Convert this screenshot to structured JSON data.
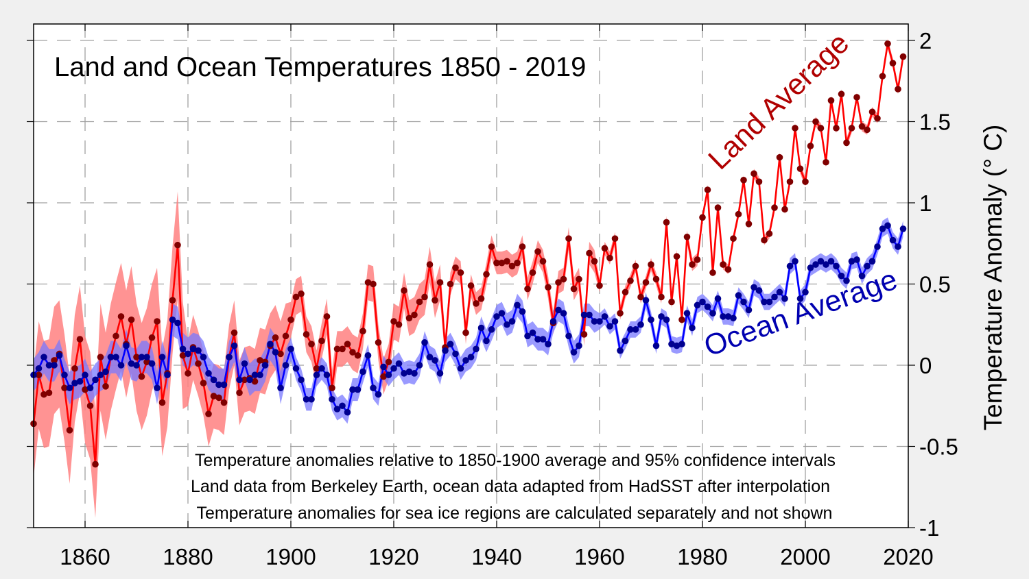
{
  "chart_data": {
    "type": "line",
    "title": "Land and Ocean Temperatures 1850 - 2019",
    "xlabel": "",
    "ylabel": "Temperature Anomaly (° C)",
    "xlim": [
      1848,
      2020
    ],
    "ylim": [
      -1,
      2.1
    ],
    "x_ticks": [
      "1860",
      "1880",
      "1900",
      "1920",
      "1940",
      "1960",
      "1980",
      "2000",
      "2020"
    ],
    "y_ticks": [
      "-1",
      "-0.5",
      "0",
      "0.5",
      "1",
      "1.5",
      "2"
    ],
    "y_axis_side": "right",
    "grid": true,
    "notes": [
      "Temperature anomalies relative to 1850-1900 average and 95% confidence intervals",
      "Land data from Berkeley Earth, ocean data adapted from HadSST after interpolation",
      "Temperature anomalies for sea ice regions are calculated separately and not shown"
    ],
    "x_start": 1850,
    "series": [
      {
        "name": "Land Average",
        "color": "#ff0000",
        "marker_color": "#800000",
        "band_color": "#ff8080",
        "values": [
          -0.36,
          -0.06,
          -0.18,
          -0.17,
          0.03,
          0.07,
          -0.14,
          -0.4,
          -0.02,
          0.16,
          -0.15,
          -0.25,
          -0.61,
          0.05,
          -0.13,
          0.05,
          0.18,
          0.3,
          0.13,
          0.28,
          0.05,
          -0.07,
          0.02,
          0.17,
          0.27,
          -0.23,
          -0.05,
          0.4,
          0.74,
          0.06,
          -0.05,
          0.11,
          0.01,
          -0.11,
          -0.3,
          -0.19,
          -0.2,
          -0.23,
          0.05,
          0.2,
          -0.17,
          -0.09,
          -0.08,
          -0.1,
          0.03,
          0.02,
          0.12,
          0.17,
          0.07,
          0.18,
          0.28,
          0.42,
          0.44,
          0.19,
          0.13,
          -0.02,
          0.15,
          0.3,
          -0.14,
          0.1,
          0.1,
          0.13,
          0.08,
          0.06,
          0.21,
          0.51,
          0.5,
          0.14,
          -0.07,
          0.02,
          0.27,
          0.25,
          0.46,
          0.29,
          0.31,
          0.39,
          0.42,
          0.62,
          0.4,
          0.51,
          0.11,
          0.5,
          0.6,
          0.57,
          0.2,
          0.49,
          0.38,
          0.41,
          0.56,
          0.73,
          0.63,
          0.63,
          0.64,
          0.61,
          0.63,
          0.73,
          0.47,
          0.57,
          0.7,
          0.64,
          0.48,
          0.26,
          0.51,
          0.53,
          0.78,
          0.47,
          0.53,
          0.19,
          0.69,
          0.64,
          0.49,
          0.72,
          0.66,
          0.78,
          0.32,
          0.45,
          0.52,
          0.61,
          0.42,
          0.51,
          0.62,
          0.53,
          0.42,
          0.88,
          0.39,
          0.67,
          0.28,
          0.79,
          0.62,
          0.65,
          0.91,
          1.08,
          0.57,
          0.97,
          0.62,
          0.59,
          0.78,
          0.93,
          1.14,
          0.87,
          1.18,
          1.13,
          0.77,
          0.81,
          0.97,
          1.28,
          0.96,
          1.13,
          1.46,
          1.21,
          1.13,
          1.35,
          1.5,
          1.46,
          1.25,
          1.63,
          1.46,
          1.67,
          1.37,
          1.46,
          1.65,
          1.47,
          1.45,
          1.56,
          1.52,
          1.78,
          1.98,
          1.86,
          1.7,
          1.9
        ],
        "ci_halfwidth": [
          {
            "from": 1850,
            "to": 1879,
            "value": 0.33
          },
          {
            "from": 1880,
            "to": 1899,
            "value": 0.2
          },
          {
            "from": 1900,
            "to": 1929,
            "value": 0.11
          },
          {
            "from": 1930,
            "to": 1959,
            "value": 0.07
          },
          {
            "from": 1960,
            "to": 1979,
            "value": 0.04
          },
          {
            "from": 1980,
            "to": 2019,
            "value": 0.03
          }
        ]
      },
      {
        "name": "Ocean Average",
        "color": "#0000ff",
        "marker_color": "#000090",
        "band_color": "#7878ff",
        "values": [
          -0.06,
          -0.02,
          0.05,
          0.0,
          0.0,
          0.06,
          -0.06,
          -0.14,
          -0.11,
          -0.1,
          -0.06,
          -0.14,
          -0.09,
          -0.06,
          -0.04,
          0.05,
          0.05,
          0.0,
          0.12,
          0.01,
          0.0,
          0.05,
          0.05,
          0.01,
          -0.14,
          0.05,
          -0.06,
          0.28,
          0.26,
          0.1,
          0.07,
          0.1,
          0.09,
          0.05,
          -0.05,
          -0.09,
          -0.12,
          -0.12,
          0.05,
          0.12,
          -0.09,
          0.01,
          -0.09,
          -0.06,
          -0.06,
          0.0,
          0.13,
          0.08,
          -0.14,
          0.0,
          0.1,
          -0.02,
          -0.09,
          -0.21,
          -0.21,
          -0.06,
          -0.02,
          -0.06,
          -0.21,
          -0.27,
          -0.25,
          -0.29,
          -0.15,
          -0.15,
          -0.04,
          0.06,
          -0.14,
          -0.18,
          -0.01,
          -0.06,
          -0.02,
          0.01,
          -0.05,
          -0.04,
          -0.05,
          0.0,
          0.14,
          0.05,
          0.03,
          -0.05,
          0.09,
          0.13,
          0.07,
          -0.02,
          0.03,
          0.05,
          0.1,
          0.23,
          0.15,
          0.22,
          0.3,
          0.32,
          0.25,
          0.27,
          0.37,
          0.33,
          0.18,
          0.2,
          0.16,
          0.16,
          0.13,
          0.27,
          0.34,
          0.32,
          0.18,
          0.08,
          0.12,
          0.31,
          0.31,
          0.27,
          0.27,
          0.3,
          0.24,
          0.27,
          0.09,
          0.15,
          0.22,
          0.22,
          0.25,
          0.4,
          0.28,
          0.12,
          0.3,
          0.28,
          0.13,
          0.12,
          0.13,
          0.32,
          0.23,
          0.37,
          0.39,
          0.36,
          0.32,
          0.41,
          0.3,
          0.3,
          0.29,
          0.43,
          0.39,
          0.34,
          0.48,
          0.46,
          0.39,
          0.39,
          0.42,
          0.45,
          0.41,
          0.61,
          0.64,
          0.41,
          0.45,
          0.6,
          0.62,
          0.64,
          0.62,
          0.64,
          0.61,
          0.55,
          0.52,
          0.64,
          0.65,
          0.55,
          0.61,
          0.64,
          0.73,
          0.84,
          0.86,
          0.77,
          0.73,
          0.84
        ],
        "ci_halfwidth": [
          {
            "from": 1850,
            "to": 1899,
            "value": 0.1
          },
          {
            "from": 1900,
            "to": 1959,
            "value": 0.07
          },
          {
            "from": 1960,
            "to": 2019,
            "value": 0.05
          }
        ]
      }
    ]
  }
}
